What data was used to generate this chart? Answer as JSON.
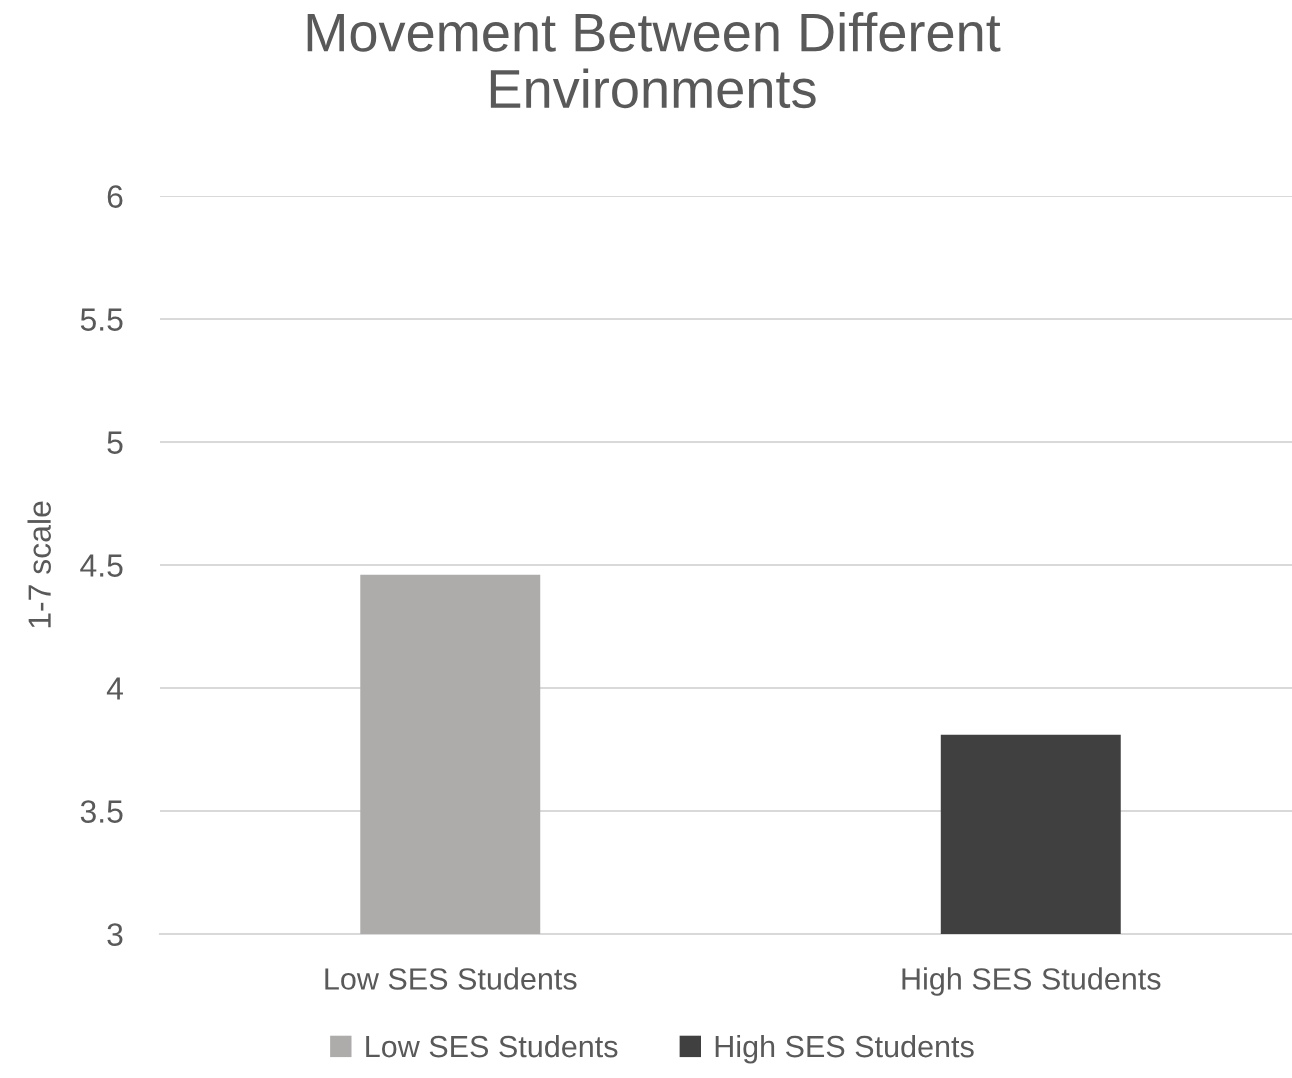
{
  "chart_data": {
    "type": "bar",
    "title": "Movement Between Different Environments",
    "ylabel": "1-7 scale",
    "categories": [
      "Low SES Students",
      "High SES Students"
    ],
    "series": [
      {
        "name": "Low SES Students",
        "color": "#aeabab",
        "values": [
          4.46,
          null
        ]
      },
      {
        "name": "High SES Students",
        "color": "#404040",
        "values": [
          null,
          3.81
        ]
      }
    ],
    "ylim": [
      3,
      6
    ],
    "yticks": [
      3,
      3.5,
      4,
      4.5,
      5,
      5.5,
      6
    ],
    "grid": "y",
    "legend": "bottom"
  }
}
